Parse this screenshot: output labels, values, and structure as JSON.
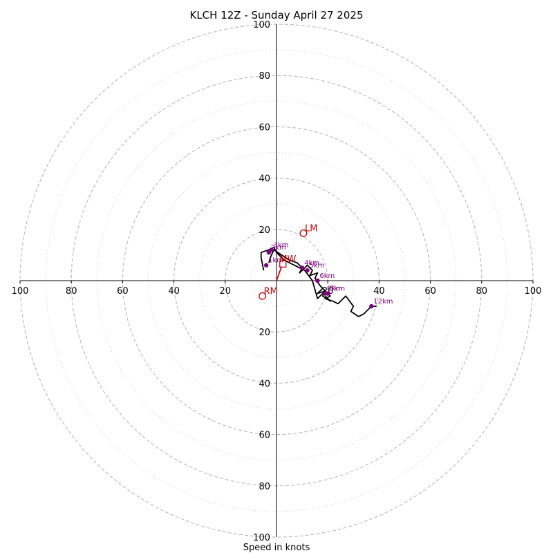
{
  "chart_data": {
    "type": "hodograph",
    "title": "KLCH 12Z - Sunday April 27 2025",
    "xlabel": "Speed in knots",
    "units": "knots",
    "rmax": 100,
    "ring_major": [
      20,
      40,
      60,
      80,
      100
    ],
    "ring_minor": [
      10,
      30,
      50,
      70,
      90
    ],
    "tick_labels": {
      "horizontal": [
        "100",
        "80",
        "60",
        "40",
        "20",
        "20",
        "40",
        "60",
        "80",
        "100"
      ],
      "vertical_up": [
        "20",
        "40",
        "60",
        "80",
        "100"
      ],
      "vertical_down": [
        "20",
        "40",
        "60",
        "80",
        "100"
      ]
    },
    "grid": true,
    "trace": {
      "color": "#000000",
      "points": [
        [
          -3,
          7
        ],
        [
          -2,
          10
        ],
        [
          -1,
          12
        ],
        [
          2,
          10
        ],
        [
          5,
          8
        ],
        [
          8,
          7
        ],
        [
          10,
          5
        ],
        [
          9,
          3
        ],
        [
          12,
          6
        ],
        [
          14,
          4
        ],
        [
          13,
          2
        ],
        [
          16,
          3
        ],
        [
          15,
          1
        ],
        [
          17,
          -2
        ],
        [
          19,
          -4
        ],
        [
          16,
          -5
        ],
        [
          18,
          -3
        ],
        [
          21,
          -6
        ],
        [
          19,
          -7
        ],
        [
          22,
          -8
        ],
        [
          24,
          -9
        ],
        [
          27,
          -6
        ],
        [
          30,
          -10
        ],
        [
          29,
          -12
        ],
        [
          32,
          -14
        ],
        [
          34,
          -13
        ],
        [
          37,
          -10
        ],
        [
          39,
          -10
        ]
      ]
    },
    "trace_loop": {
      "color": "#000000",
      "points": [
        [
          -5,
          4
        ],
        [
          -6,
          9
        ],
        [
          -6,
          11
        ],
        [
          -3,
          12
        ],
        [
          -1,
          13
        ],
        [
          0,
          11
        ],
        [
          3,
          8
        ],
        [
          9,
          5
        ],
        [
          11,
          4
        ],
        [
          14,
          0
        ],
        [
          16,
          -7
        ],
        [
          17,
          -6
        ],
        [
          19,
          -4
        ],
        [
          18,
          -6
        ],
        [
          21,
          -8
        ],
        [
          19,
          -6
        ]
      ]
    },
    "height_markers": [
      {
        "label": "1km",
        "u": -4,
        "v": 6
      },
      {
        "label": "3km",
        "u": -2,
        "v": 12
      },
      {
        "label": "2km",
        "u": -3,
        "v": 11
      },
      {
        "label": "4km",
        "u": 10,
        "v": 5
      },
      {
        "label": "5km",
        "u": 12,
        "v": 4
      },
      {
        "label": "6km",
        "u": 16,
        "v": 0
      },
      {
        "label": "7km",
        "u": 20,
        "v": -5
      },
      {
        "label": "8km",
        "u": 19,
        "v": -5
      },
      {
        "label": "12km",
        "u": 37,
        "v": -10
      }
    ],
    "storm_motion": {
      "color": "#cc0000",
      "lm": {
        "label": "LM",
        "u": 10.5,
        "v": 18.5
      },
      "rm": {
        "label": "RM",
        "u": -5.5,
        "v": -6
      },
      "mw": {
        "label": "MW",
        "u": 2.5,
        "v": 6.5
      }
    },
    "vector": {
      "color": "#dd0000",
      "u": 2,
      "v": 5.5
    }
  }
}
